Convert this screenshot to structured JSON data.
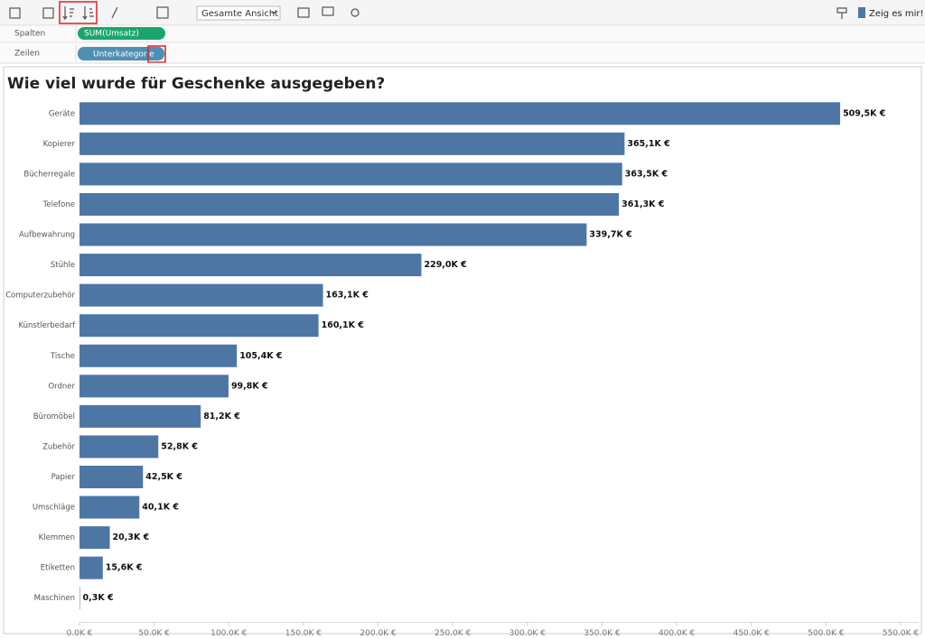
{
  "toolbar": {
    "view_dropdown": "Gesamte Ansicht",
    "show_me": "Zeig es mir!"
  },
  "shelves": {
    "columns_label": "Spalten",
    "columns_pill": "SUM(Umsatz)",
    "rows_label": "Zeilen",
    "rows_pill": "Unterkategorie"
  },
  "chart_data": {
    "type": "hbar",
    "title": "Wie viel wurde für Geschenke ausgegeben?",
    "categories": [
      "Geräte",
      "Kopierer",
      "Bücherregale",
      "Telefone",
      "Aufbewahrung",
      "Stühle",
      "Computerzubehör",
      "Künstlerbedarf",
      "Tische",
      "Ordner",
      "Büromöbel",
      "Zubehör",
      "Papier",
      "Umschläge",
      "Klemmen",
      "Etiketten",
      "Maschinen"
    ],
    "values": [
      509500,
      365100,
      363500,
      361300,
      339700,
      229000,
      163100,
      160100,
      105400,
      99800,
      81200,
      52800,
      42500,
      40100,
      20300,
      15600,
      300
    ],
    "value_labels": [
      "509,5K €",
      "365,1K €",
      "363,5K €",
      "361,3K €",
      "339,7K €",
      "229,0K €",
      "163,1K €",
      "160,1K €",
      "105,4K €",
      "99,8K €",
      "81,2K €",
      "52,8K €",
      "42,5K €",
      "40,1K €",
      "20,3K €",
      "15,6K €",
      "0,3K €"
    ],
    "color": "#4e76a5",
    "xlim": [
      0,
      550000
    ],
    "xticks": [
      {
        "value": 0,
        "label": "0,0K €"
      },
      {
        "value": 50000,
        "label": "50,0K €"
      },
      {
        "value": 100000,
        "label": "100,0K €"
      },
      {
        "value": 150000,
        "label": "150,0K €"
      },
      {
        "value": 200000,
        "label": "200,0K €"
      },
      {
        "value": 250000,
        "label": "250,0K €"
      },
      {
        "value": 300000,
        "label": "300,0K €"
      },
      {
        "value": 350000,
        "label": "350,0K €"
      },
      {
        "value": 400000,
        "label": "400,0K €"
      },
      {
        "value": 450000,
        "label": "450,0K €"
      },
      {
        "value": 500000,
        "label": "500,0K €"
      },
      {
        "value": 550000,
        "label": "550,0K €"
      }
    ]
  }
}
